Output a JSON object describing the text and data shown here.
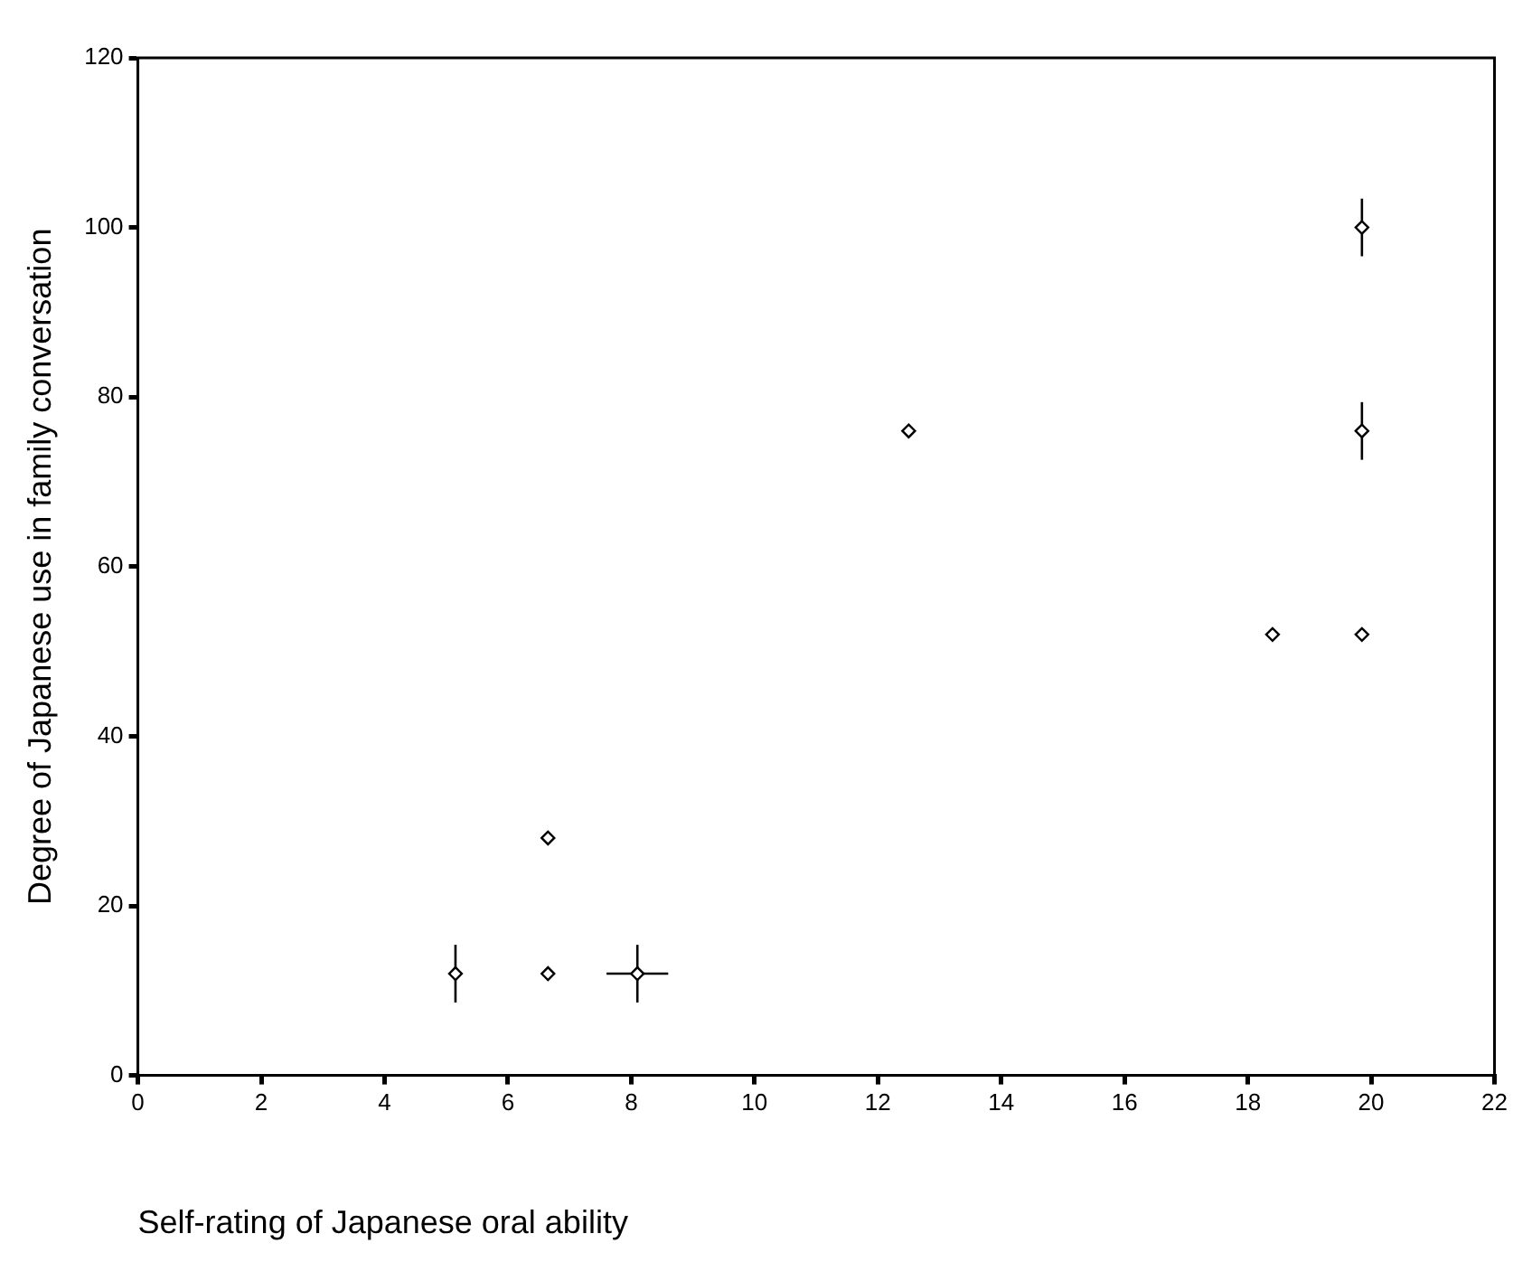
{
  "chart_data": {
    "type": "scatter",
    "xlabel": "Self-rating of Japanese oral ability",
    "ylabel": "Degree of Japanese use in family conversation",
    "x": [
      5.15,
      6.65,
      6.65,
      8.1,
      12.5,
      18.4,
      19.85,
      19.85,
      19.85
    ],
    "values": [
      12,
      28,
      12,
      12,
      76,
      52,
      52,
      76,
      100
    ],
    "errors": [
      3.4,
      null,
      null,
      3.4,
      null,
      null,
      null,
      3.4,
      3.4
    ],
    "xerrors": [
      null,
      null,
      null,
      0.5,
      null,
      null,
      null,
      null,
      null
    ],
    "color": "#000000",
    "marker": "diamond",
    "grid": false,
    "legend": false,
    "xlim": [
      0,
      22
    ],
    "xticks": [
      0,
      2,
      4,
      6,
      8,
      10,
      12,
      14,
      16,
      18,
      20,
      22
    ],
    "ylim": [
      0,
      120
    ],
    "yticks": [
      0,
      20,
      40,
      60,
      80,
      100,
      120
    ]
  }
}
